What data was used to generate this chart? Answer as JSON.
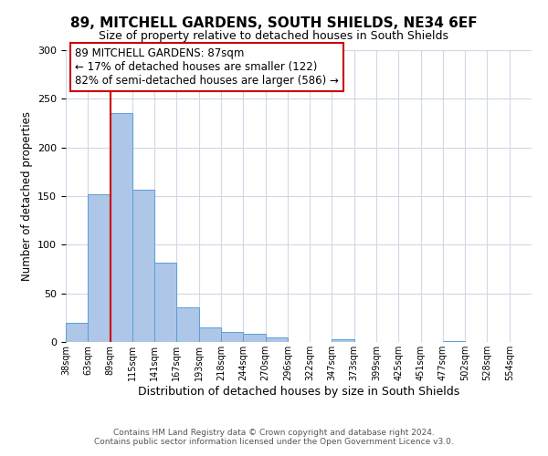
{
  "title": "89, MITCHELL GARDENS, SOUTH SHIELDS, NE34 6EF",
  "subtitle": "Size of property relative to detached houses in South Shields",
  "xlabel": "Distribution of detached houses by size in South Shields",
  "ylabel": "Number of detached properties",
  "bin_labels": [
    "38sqm",
    "63sqm",
    "89sqm",
    "115sqm",
    "141sqm",
    "167sqm",
    "193sqm",
    "218sqm",
    "244sqm",
    "270sqm",
    "296sqm",
    "322sqm",
    "347sqm",
    "373sqm",
    "399sqm",
    "425sqm",
    "451sqm",
    "477sqm",
    "502sqm",
    "528sqm",
    "554sqm"
  ],
  "bar_values": [
    20,
    152,
    235,
    157,
    82,
    36,
    15,
    10,
    8,
    5,
    0,
    0,
    3,
    0,
    0,
    0,
    0,
    1,
    0,
    0,
    0
  ],
  "bar_color": "#aec6e8",
  "bar_edge_color": "#5a9fd4",
  "vline_x": 2,
  "vline_color": "#cc0000",
  "ylim": [
    0,
    300
  ],
  "yticks": [
    0,
    50,
    100,
    150,
    200,
    250,
    300
  ],
  "annotation_title": "89 MITCHELL GARDENS: 87sqm",
  "annotation_line1": "← 17% of detached houses are smaller (122)",
  "annotation_line2": "82% of semi-detached houses are larger (586) →",
  "annotation_box_color": "#ffffff",
  "annotation_box_edge": "#cc0000",
  "footer1": "Contains HM Land Registry data © Crown copyright and database right 2024.",
  "footer2": "Contains public sector information licensed under the Open Government Licence v3.0.",
  "bg_color": "#ffffff",
  "grid_color": "#d0d8e8",
  "title_fontsize": 11,
  "subtitle_fontsize": 9,
  "ylabel_fontsize": 8.5,
  "xlabel_fontsize": 9,
  "tick_fontsize": 8,
  "xtick_fontsize": 7,
  "ann_fontsize": 8.5,
  "footer_fontsize": 6.5
}
